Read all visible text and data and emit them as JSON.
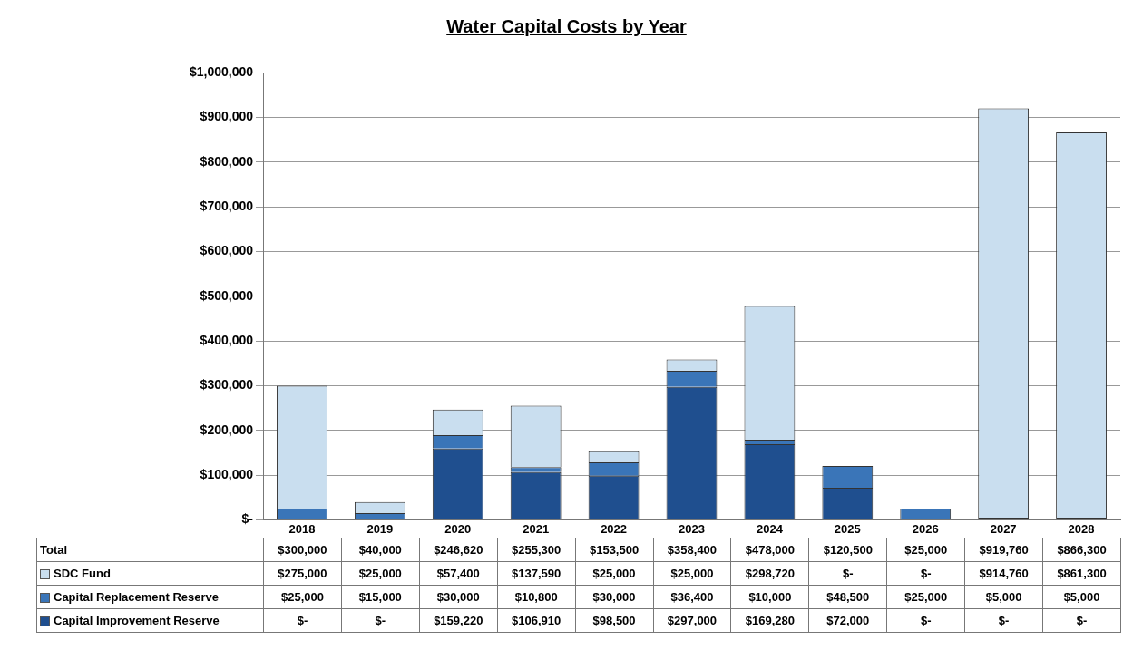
{
  "chart_data": {
    "type": "bar",
    "title": "Water Capital Costs by Year",
    "stacked": true,
    "categories": [
      "2018",
      "2019",
      "2020",
      "2021",
      "2022",
      "2023",
      "2024",
      "2025",
      "2026",
      "2027",
      "2028"
    ],
    "series": [
      {
        "name": "Capital Improvement Reserve",
        "color": "#1f4f8f",
        "values": [
          0,
          0,
          159220,
          106910,
          98500,
          297000,
          169280,
          72000,
          0,
          0,
          0
        ],
        "value_labels": [
          "$-",
          "$-",
          "$159,220",
          "$106,910",
          "$98,500",
          "$297,000",
          "$169,280",
          "$72,000",
          "$-",
          "$-",
          "$-"
        ]
      },
      {
        "name": "Capital Replacement Reserve",
        "color": "#3a75b8",
        "values": [
          25000,
          15000,
          30000,
          10800,
          30000,
          36400,
          10000,
          48500,
          25000,
          5000,
          5000
        ],
        "value_labels": [
          "$25,000",
          "$15,000",
          "$30,000",
          "$10,800",
          "$30,000",
          "$36,400",
          "$10,000",
          "$48,500",
          "$25,000",
          "$5,000",
          "$5,000"
        ]
      },
      {
        "name": "SDC Fund",
        "color": "#c9deef",
        "values": [
          275000,
          25000,
          57400,
          137590,
          25000,
          25000,
          298720,
          0,
          0,
          914760,
          861300
        ],
        "value_labels": [
          "$275,000",
          "$25,000",
          "$57,400",
          "$137,590",
          "$25,000",
          "$25,000",
          "$298,720",
          "$-",
          "$-",
          "$914,760",
          "$861,300"
        ]
      }
    ],
    "totals": [
      "$300,000",
      "$40,000",
      "$246,620",
      "$255,300",
      "$153,500",
      "$358,400",
      "$478,000",
      "$120,500",
      "$25,000",
      "$919,760",
      "$866,300"
    ],
    "ylim": [
      0,
      1000000
    ],
    "yticks": [
      {
        "value": 0,
        "label": "$-"
      },
      {
        "value": 100000,
        "label": "$100,000"
      },
      {
        "value": 200000,
        "label": "$200,000"
      },
      {
        "value": 300000,
        "label": "$300,000"
      },
      {
        "value": 400000,
        "label": "$400,000"
      },
      {
        "value": 500000,
        "label": "$500,000"
      },
      {
        "value": 600000,
        "label": "$600,000"
      },
      {
        "value": 700000,
        "label": "$700,000"
      },
      {
        "value": 800000,
        "label": "$800,000"
      },
      {
        "value": 900000,
        "label": "$900,000"
      },
      {
        "value": 1000000,
        "label": "$1,000,000"
      }
    ],
    "annotations": [
      "Total"
    ],
    "grid": "y",
    "legend": "bottom"
  }
}
